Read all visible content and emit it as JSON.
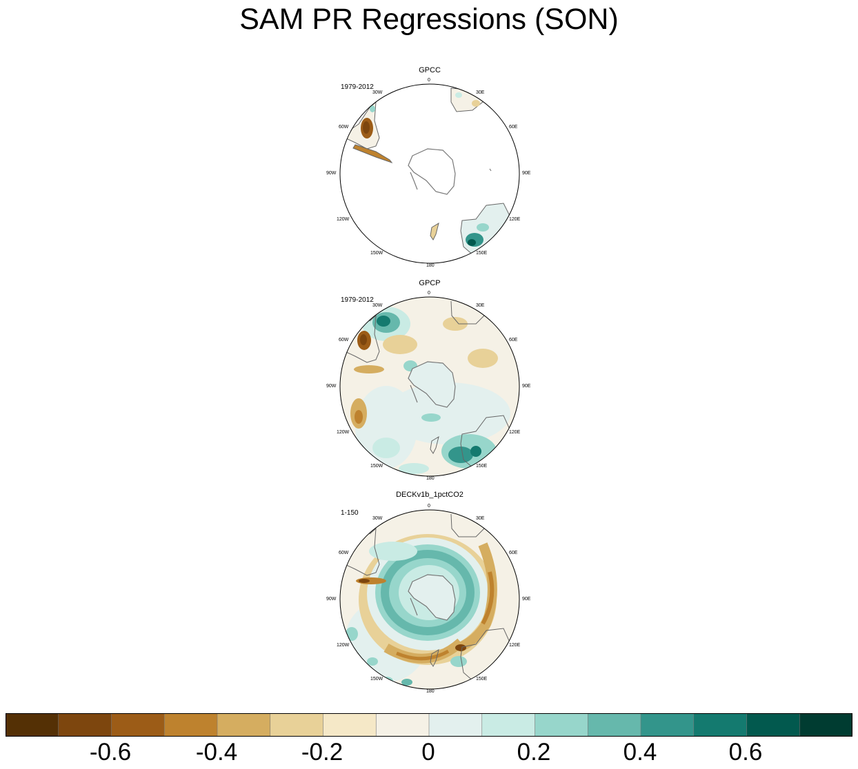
{
  "title": "SAM PR Regressions (SON)",
  "chart_data": {
    "type": "polar-map",
    "projection": "South polar stereographic",
    "panels": [
      {
        "name": "GPCC",
        "period": "1979-2012",
        "lon_labels": [
          "0",
          "30E",
          "60E",
          "90E",
          "120E",
          "150E",
          "180",
          "150W",
          "120W",
          "90W",
          "60W",
          "30W"
        ],
        "coverage": "land only",
        "features": [
          {
            "region": "southern South America",
            "value": -0.65
          },
          {
            "region": "southeast Australia",
            "value": 0.55
          },
          {
            "region": "southern Africa",
            "value": 0.2
          },
          {
            "region": "New Zealand",
            "value": -0.3
          }
        ]
      },
      {
        "name": "GPCP",
        "period": "1979-2012",
        "lon_labels": [
          "0",
          "30E",
          "60E",
          "90E",
          "120E",
          "150E",
          "180",
          "150W",
          "120W",
          "90W",
          "60W",
          "30W"
        ],
        "coverage": "global",
        "features": [
          {
            "region": "South Atlantic 30W",
            "value": 0.65
          },
          {
            "region": "southern South America",
            "value": -0.7
          },
          {
            "region": "southeast Pacific 110W",
            "value": -0.5
          },
          {
            "region": "Tasman Sea / southeast Australia",
            "value": 0.55
          }
        ]
      },
      {
        "name": "DECKv1b_1pctCO2",
        "period": "1-150",
        "lon_labels": [
          "0",
          "30E",
          "60E",
          "90E",
          "120E",
          "150E",
          "180",
          "150W",
          "120W",
          "90W",
          "60W",
          "30W"
        ],
        "coverage": "global",
        "features": [
          {
            "region": "Antarctic ring 60-65S",
            "value": 0.4
          },
          {
            "region": "mid-latitude band 40-50S",
            "value": -0.4
          },
          {
            "region": "southern South America",
            "value": -0.6
          },
          {
            "region": "Antarctic interior",
            "value": 0.1
          }
        ]
      }
    ],
    "colorbar": {
      "levels": [
        -0.7,
        -0.6,
        -0.5,
        -0.4,
        -0.3,
        -0.2,
        -0.1,
        0,
        0.1,
        0.2,
        0.3,
        0.4,
        0.5,
        0.6,
        0.7
      ],
      "colors": [
        "#543005",
        "#7d460e",
        "#9c5c17",
        "#be822e",
        "#d5ad60",
        "#e8d198",
        "#f5e8c7",
        "#f5f1e6",
        "#e3f0ee",
        "#c9ebe4",
        "#97d6cb",
        "#66b8ac",
        "#33958b",
        "#147a6f",
        "#02594e",
        "#003c31"
      ],
      "tick_labels": [
        "-0.6",
        "-0.4",
        "-0.2",
        "0",
        "0.2",
        "0.4",
        "0.6"
      ]
    }
  }
}
